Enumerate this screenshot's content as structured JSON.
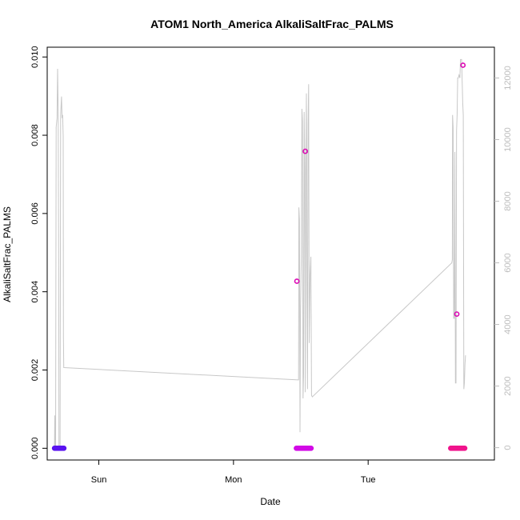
{
  "chart_data": {
    "type": "line",
    "title": "ATOM1 North_America AlkaliSaltFrac_PALMS",
    "xlabel": "Date",
    "ylabel": "AlkaliSaltFrac_PALMS",
    "x_tick_labels": [
      "Sun",
      "Mon",
      "Tue"
    ],
    "x_ticks_hours": [
      24,
      48,
      72
    ],
    "xlim_hours": [
      14.8,
      94.5
    ],
    "ylim": [
      -0.0003,
      0.01025
    ],
    "y_ticks": [
      "0.000",
      "0.002",
      "0.004",
      "0.006",
      "0.008",
      "0.010"
    ],
    "y_tick_values": [
      0,
      0.002,
      0.004,
      0.006,
      0.008,
      0.01
    ],
    "y2lim": [
      -400,
      13000
    ],
    "y2_ticks": [
      "0",
      "2000",
      "4000",
      "6000",
      "8000",
      "10000",
      "12000"
    ],
    "y2_tick_values": [
      0,
      2000,
      4000,
      6000,
      8000,
      10000,
      12000
    ],
    "series": [
      {
        "role": "line",
        "axis": "right",
        "color": "#c8c8c8",
        "points": [
          [
            16.1,
            0
          ],
          [
            16.15,
            1050
          ],
          [
            16.2,
            0
          ],
          [
            16.3,
            0
          ],
          [
            16.4,
            10400
          ],
          [
            16.55,
            10700
          ],
          [
            16.65,
            12300
          ],
          [
            16.75,
            11000
          ],
          [
            16.85,
            5700
          ],
          [
            16.9,
            0
          ],
          [
            17.1,
            0
          ],
          [
            17.2,
            10800
          ],
          [
            17.35,
            11400
          ],
          [
            17.45,
            10700
          ],
          [
            17.55,
            10800
          ],
          [
            17.65,
            10100
          ],
          [
            17.7,
            3600
          ],
          [
            17.75,
            2600
          ],
          [
            17.8,
            2600
          ],
          [
            59.5,
            2200
          ],
          [
            59.6,
            2200
          ],
          [
            59.65,
            7800
          ],
          [
            59.75,
            7400
          ],
          [
            59.85,
            500
          ],
          [
            59.95,
            4500
          ],
          [
            60.1,
            6300
          ],
          [
            60.2,
            11000
          ],
          [
            60.3,
            10600
          ],
          [
            60.4,
            1600
          ],
          [
            60.5,
            2400
          ],
          [
            60.6,
            10900
          ],
          [
            60.7,
            9100
          ],
          [
            60.8,
            1800
          ],
          [
            60.9,
            9300
          ],
          [
            61.0,
            11500
          ],
          [
            61.1,
            5000
          ],
          [
            61.2,
            1900
          ],
          [
            61.3,
            10500
          ],
          [
            61.4,
            11800
          ],
          [
            61.5,
            3400
          ],
          [
            61.65,
            5600
          ],
          [
            61.8,
            6200
          ],
          [
            61.9,
            1700
          ],
          [
            62.05,
            1650
          ],
          [
            86.9,
            6000
          ],
          [
            87.0,
            6100
          ],
          [
            87.05,
            10800
          ],
          [
            87.15,
            10400
          ],
          [
            87.25,
            4200
          ],
          [
            87.35,
            4200
          ],
          [
            87.45,
            9600
          ],
          [
            87.55,
            2100
          ],
          [
            87.65,
            2100
          ],
          [
            87.75,
            10300
          ],
          [
            87.85,
            10800
          ],
          [
            87.95,
            12000
          ],
          [
            88.05,
            12000
          ],
          [
            88.2,
            12100
          ],
          [
            88.35,
            12000
          ],
          [
            88.45,
            12600
          ],
          [
            88.65,
            12600
          ],
          [
            88.85,
            11200
          ],
          [
            88.95,
            10800
          ],
          [
            89.05,
            1900
          ],
          [
            89.15,
            2100
          ],
          [
            89.25,
            2700
          ],
          [
            89.35,
            3000
          ]
        ]
      },
      {
        "role": "baseline-points",
        "axis": "left",
        "ranges_hours": [
          [
            16.1,
            17.8
          ],
          [
            59.2,
            61.9
          ],
          [
            86.7,
            89.3
          ]
        ],
        "colors": [
          "#5a14f0",
          "#d20ae6",
          "#f0148c"
        ],
        "value": 0
      },
      {
        "role": "highlight-points",
        "axis": "left",
        "color": "#dc0ab4",
        "points": [
          [
            59.3,
            0.00427
          ],
          [
            60.8,
            0.00759
          ],
          [
            87.8,
            0.00343
          ],
          [
            88.9,
            0.00979
          ]
        ]
      }
    ]
  }
}
